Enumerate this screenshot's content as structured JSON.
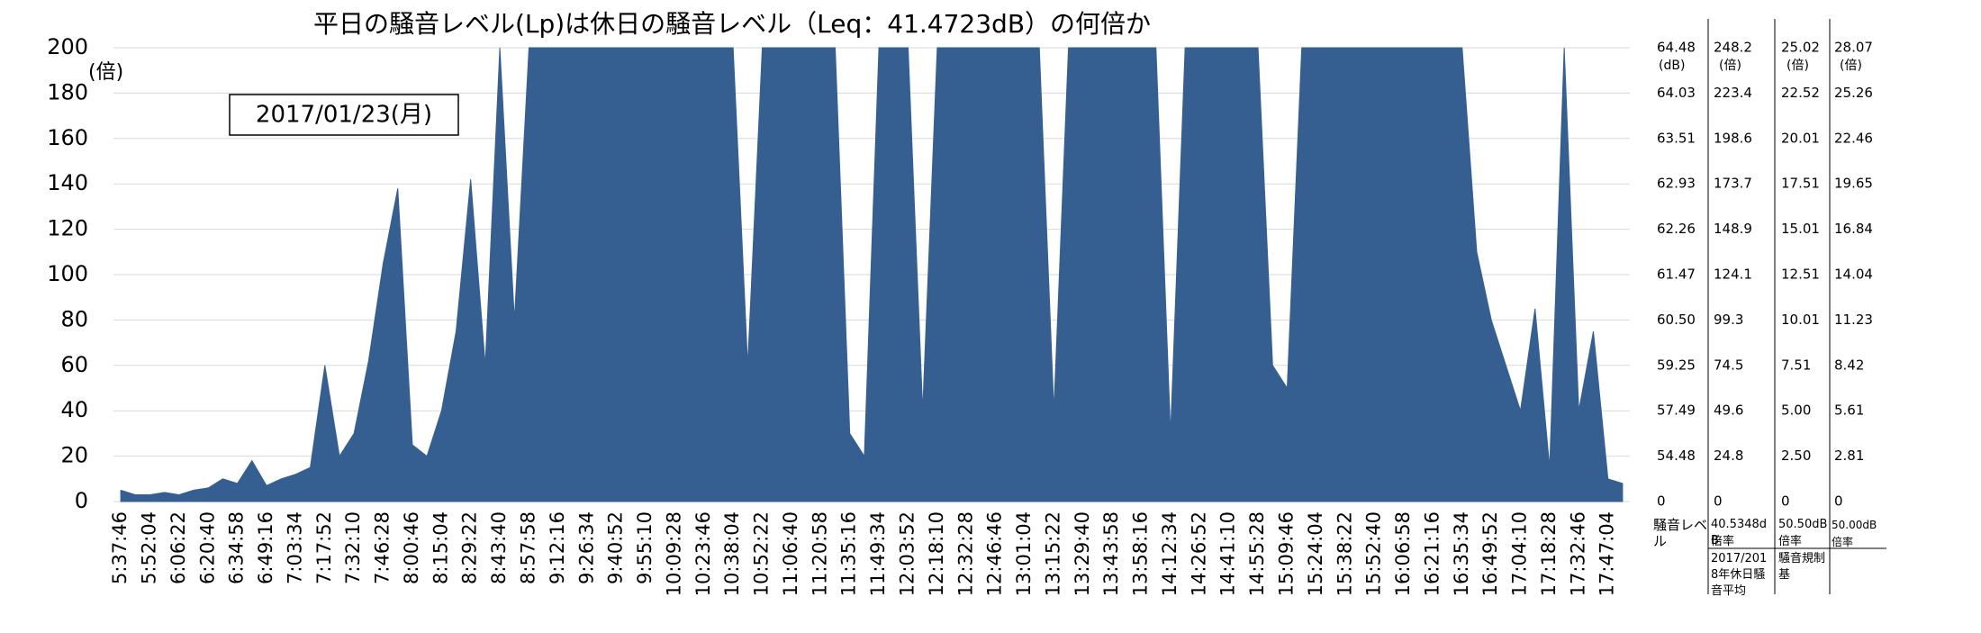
{
  "chart_data": {
    "type": "area",
    "title": "平日の騒音レベル(Lp)は休日の騒音レベル（Leq：41.4723dB）の何倍か",
    "y_unit": "(倍)",
    "date_label": "2017/01/23(月)",
    "color": "#365f91",
    "grid": true,
    "ylim": [
      0,
      200
    ],
    "yticks": [
      0,
      20,
      40,
      60,
      80,
      100,
      120,
      140,
      160,
      180,
      200
    ],
    "categories": [
      "5:37:46",
      null,
      "5:52:04",
      null,
      "6:06:22",
      null,
      "6:20:40",
      null,
      "6:34:58",
      null,
      "6:49:16",
      null,
      "7:03:34",
      null,
      "7:17:52",
      null,
      "7:32:10",
      null,
      "7:46:28",
      null,
      "8:00:46",
      null,
      "8:15:04",
      null,
      "8:29:22",
      null,
      "8:43:40",
      null,
      "8:57:58",
      null,
      "9:12:16",
      null,
      "9:26:34",
      null,
      "9:40:52",
      null,
      "9:55:10",
      null,
      "10:09:28",
      null,
      "10:23:46",
      null,
      "10:38:04",
      null,
      "10:52:22",
      null,
      "11:06:40",
      null,
      "11:20:58",
      null,
      "11:35:16",
      null,
      "11:49:34",
      null,
      "12:03:52",
      null,
      "12:18:10",
      null,
      "12:32:28",
      null,
      "12:46:46",
      null,
      "13:01:04",
      null,
      "13:15:22",
      null,
      "13:29:40",
      null,
      "13:43:58",
      null,
      "13:58:16",
      null,
      "14:12:34",
      null,
      "14:26:52",
      null,
      "14:41:10",
      null,
      "14:55:28",
      null,
      "15:09:46",
      null,
      "15:24:04",
      null,
      "15:38:22",
      null,
      "15:52:40",
      null,
      "16:06:58",
      null,
      "16:21:16",
      null,
      "16:35:34",
      null,
      "16:49:52",
      null,
      "17:04:10",
      null,
      "17:18:28",
      null,
      "17:32:46",
      null,
      "17:47:04",
      null
    ],
    "values": [
      5,
      3,
      3,
      4,
      3,
      5,
      6,
      10,
      8,
      18,
      7,
      10,
      12,
      15,
      60,
      20,
      30,
      62,
      105,
      138,
      25,
      20,
      40,
      75,
      142,
      60,
      200,
      80,
      200,
      200,
      200,
      200,
      200,
      200,
      200,
      200,
      200,
      200,
      200,
      200,
      200,
      200,
      200,
      60,
      200,
      200,
      200,
      200,
      200,
      200,
      30,
      20,
      200,
      200,
      200,
      40,
      200,
      200,
      200,
      200,
      200,
      200,
      200,
      200,
      40,
      200,
      200,
      200,
      200,
      200,
      200,
      200,
      30,
      200,
      200,
      200,
      200,
      200,
      200,
      60,
      50,
      200,
      200,
      200,
      200,
      200,
      200,
      200,
      200,
      200,
      200,
      200,
      200,
      110,
      80,
      60,
      40,
      85,
      15,
      200,
      40,
      75,
      10,
      8
    ],
    "right_columns": [
      {
        "header": "64.48",
        "unit": "(dB)",
        "labels": [
          "0",
          "54.48",
          "57.49",
          "59.25",
          "60.50",
          "61.47",
          "62.26",
          "62.93",
          "63.51",
          "64.03"
        ],
        "footer": [
          "騒音レベル"
        ]
      },
      {
        "header": "248.2",
        "unit": "(倍)",
        "labels": [
          "0",
          "24.8",
          "49.6",
          "74.5",
          "99.3",
          "124.1",
          "148.9",
          "173.7",
          "198.6",
          "223.4"
        ],
        "footer": [
          "40.5348dB",
          "倍率",
          "2017/2018年休日騒音平均"
        ]
      },
      {
        "header": "25.02",
        "unit": "(倍)",
        "labels": [
          "0",
          "2.50",
          "5.00",
          "7.51",
          "10.01",
          "12.51",
          "15.01",
          "17.51",
          "20.01",
          "22.52"
        ],
        "footer": [
          "50.50dB",
          "倍率",
          "騒音規制基"
        ]
      },
      {
        "header": "28.07",
        "unit": "(倍)",
        "labels": [
          "0",
          "2.81",
          "5.61",
          "8.42",
          "11.23",
          "14.04",
          "16.84",
          "19.65",
          "22.46",
          "25.26"
        ],
        "footer": [
          "50.00dB",
          "倍率"
        ]
      }
    ]
  }
}
